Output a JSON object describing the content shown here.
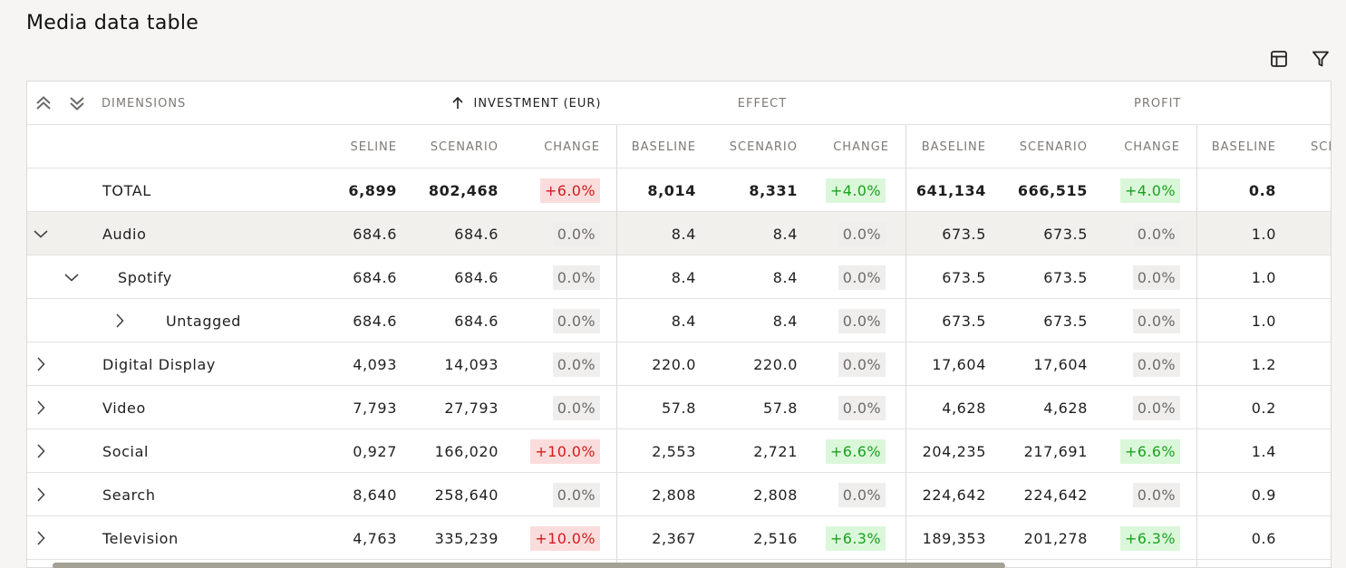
{
  "page_title": "Media data table",
  "toolbar": {
    "layout_icon": "table-layout-icon",
    "filter_icon": "filter-icon"
  },
  "header": {
    "collapse_all_icon": "chevrons-up-icon",
    "expand_all_icon": "chevrons-down-icon",
    "dimensions_label": "DIMENSIONS",
    "sort_icon": "arrow-up-icon",
    "groups": [
      "INVESTMENT (EUR)",
      "EFFECT",
      "PROFIT"
    ],
    "subcolumns": [
      "SELINE",
      "SCENARIO",
      "CHANGE",
      "BASELINE",
      "SCENARIO",
      "CHANGE",
      "BASELINE",
      "SCENARIO",
      "CHANGE",
      "BASELINE",
      "SCE"
    ]
  },
  "colors": {
    "negative": "#d21b1b",
    "positive": "#1aa21e",
    "neutral": "#6d6a66"
  },
  "rows": [
    {
      "name": "TOTAL",
      "expander": "",
      "level": 0,
      "bold": true,
      "inv": [
        "6,899",
        "802,468"
      ],
      "inv_chg": "+6.0%",
      "inv_dir": "neg",
      "eff": [
        "8,014",
        "8,331"
      ],
      "eff_chg": "+4.0%",
      "eff_dir": "pos",
      "pro": [
        "641,134",
        "666,515"
      ],
      "pro_chg": "+4.0%",
      "pro_dir": "pos",
      "last": "0.8"
    },
    {
      "name": "Audio",
      "expander": "chevron-down-icon",
      "level": 0,
      "selected": true,
      "inv": [
        "684.6",
        "684.6"
      ],
      "inv_chg": "0.0%",
      "inv_dir": "neu",
      "eff": [
        "8.4",
        "8.4"
      ],
      "eff_chg": "0.0%",
      "eff_dir": "neu",
      "pro": [
        "673.5",
        "673.5"
      ],
      "pro_chg": "0.0%",
      "pro_dir": "neu",
      "last": "1.0"
    },
    {
      "name": "Spotify",
      "expander": "chevron-down-icon",
      "level": 1,
      "inv": [
        "684.6",
        "684.6"
      ],
      "inv_chg": "0.0%",
      "inv_dir": "neu",
      "eff": [
        "8.4",
        "8.4"
      ],
      "eff_chg": "0.0%",
      "eff_dir": "neu",
      "pro": [
        "673.5",
        "673.5"
      ],
      "pro_chg": "0.0%",
      "pro_dir": "neu",
      "last": "1.0"
    },
    {
      "name": "Untagged",
      "expander": "chevron-right-icon",
      "level": 2,
      "inv": [
        "684.6",
        "684.6"
      ],
      "inv_chg": "0.0%",
      "inv_dir": "neu",
      "eff": [
        "8.4",
        "8.4"
      ],
      "eff_chg": "0.0%",
      "eff_dir": "neu",
      "pro": [
        "673.5",
        "673.5"
      ],
      "pro_chg": "0.0%",
      "pro_dir": "neu",
      "last": "1.0"
    },
    {
      "name": "Digital Display",
      "expander": "chevron-right-icon",
      "level": 0,
      "inv": [
        "4,093",
        "14,093"
      ],
      "inv_chg": "0.0%",
      "inv_dir": "neu",
      "eff": [
        "220.0",
        "220.0"
      ],
      "eff_chg": "0.0%",
      "eff_dir": "neu",
      "pro": [
        "17,604",
        "17,604"
      ],
      "pro_chg": "0.0%",
      "pro_dir": "neu",
      "last": "1.2"
    },
    {
      "name": "Video",
      "expander": "chevron-right-icon",
      "level": 0,
      "inv": [
        "7,793",
        "27,793"
      ],
      "inv_chg": "0.0%",
      "inv_dir": "neu",
      "eff": [
        "57.8",
        "57.8"
      ],
      "eff_chg": "0.0%",
      "eff_dir": "neu",
      "pro": [
        "4,628",
        "4,628"
      ],
      "pro_chg": "0.0%",
      "pro_dir": "neu",
      "last": "0.2"
    },
    {
      "name": "Social",
      "expander": "chevron-right-icon",
      "level": 0,
      "inv": [
        "0,927",
        "166,020"
      ],
      "inv_chg": "+10.0%",
      "inv_dir": "neg",
      "eff": [
        "2,553",
        "2,721"
      ],
      "eff_chg": "+6.6%",
      "eff_dir": "pos",
      "pro": [
        "204,235",
        "217,691"
      ],
      "pro_chg": "+6.6%",
      "pro_dir": "pos",
      "last": "1.4"
    },
    {
      "name": "Search",
      "expander": "chevron-right-icon",
      "level": 0,
      "inv": [
        "8,640",
        "258,640"
      ],
      "inv_chg": "0.0%",
      "inv_dir": "neu",
      "eff": [
        "2,808",
        "2,808"
      ],
      "eff_chg": "0.0%",
      "eff_dir": "neu",
      "pro": [
        "224,642",
        "224,642"
      ],
      "pro_chg": "0.0%",
      "pro_dir": "neu",
      "last": "0.9"
    },
    {
      "name": "Television",
      "expander": "chevron-right-icon",
      "level": 0,
      "inv": [
        "4,763",
        "335,239"
      ],
      "inv_chg": "+10.0%",
      "inv_dir": "neg",
      "eff": [
        "2,367",
        "2,516"
      ],
      "eff_chg": "+6.3%",
      "eff_dir": "pos",
      "pro": [
        "189,353",
        "201,278"
      ],
      "pro_chg": "+6.3%",
      "pro_dir": "pos",
      "last": "0.6"
    }
  ],
  "scrollbar": {
    "position_fraction": 0.0,
    "visible_fraction": 0.73
  }
}
